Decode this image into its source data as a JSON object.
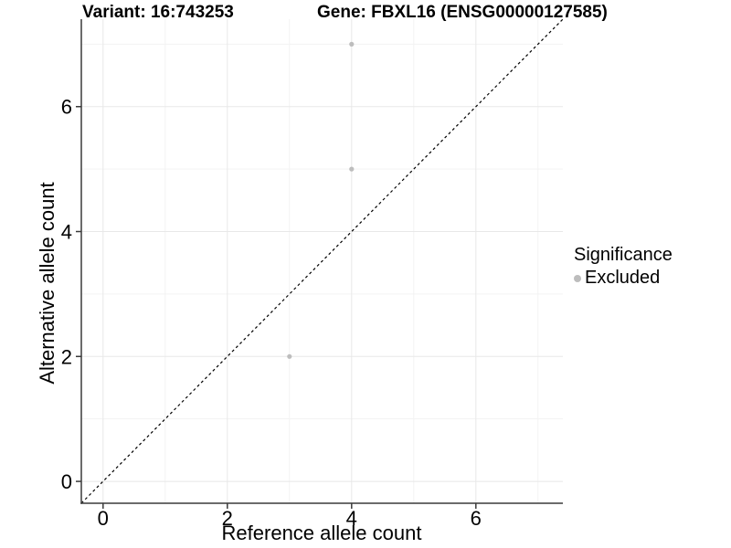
{
  "header": {
    "variant_title": "Variant: 16:743253",
    "gene_title": "Gene: FBXL16 (ENSG00000127585)"
  },
  "chart_data": {
    "type": "scatter",
    "title_left": "Variant: 16:743253",
    "title_right": "Gene: FBXL16 (ENSG00000127585)",
    "xlabel": "Reference allele count",
    "ylabel": "Alternative allele count",
    "xlim": [
      -0.35,
      7.4
    ],
    "ylim": [
      -0.35,
      7.4
    ],
    "xticks": [
      0,
      2,
      4,
      6
    ],
    "yticks": [
      0,
      2,
      4,
      6
    ],
    "xticks_minor": [
      1,
      3,
      5,
      7
    ],
    "yticks_minor": [
      1,
      3,
      5,
      7
    ],
    "grid": true,
    "series": [
      {
        "name": "Excluded",
        "color": "#bdbdbd",
        "points": [
          [
            4,
            7
          ],
          [
            4,
            5
          ],
          [
            3,
            2
          ]
        ]
      }
    ],
    "identity_line": {
      "style": "dashed",
      "color": "#000000",
      "from": [
        -0.35,
        -0.35
      ],
      "to": [
        7.4,
        7.4
      ]
    },
    "legend": {
      "title": "Significance",
      "position": "right",
      "items": [
        {
          "label": "Excluded",
          "color": "#bdbdbd"
        }
      ]
    },
    "style": {
      "grid_major": "#e8e8e8",
      "grid_minor": "#f3f3f3",
      "axis_line": "#3a3a3a",
      "text": "#000000",
      "background": "#ffffff",
      "point_radius": 2.6,
      "tick_font_size": 22
    }
  }
}
